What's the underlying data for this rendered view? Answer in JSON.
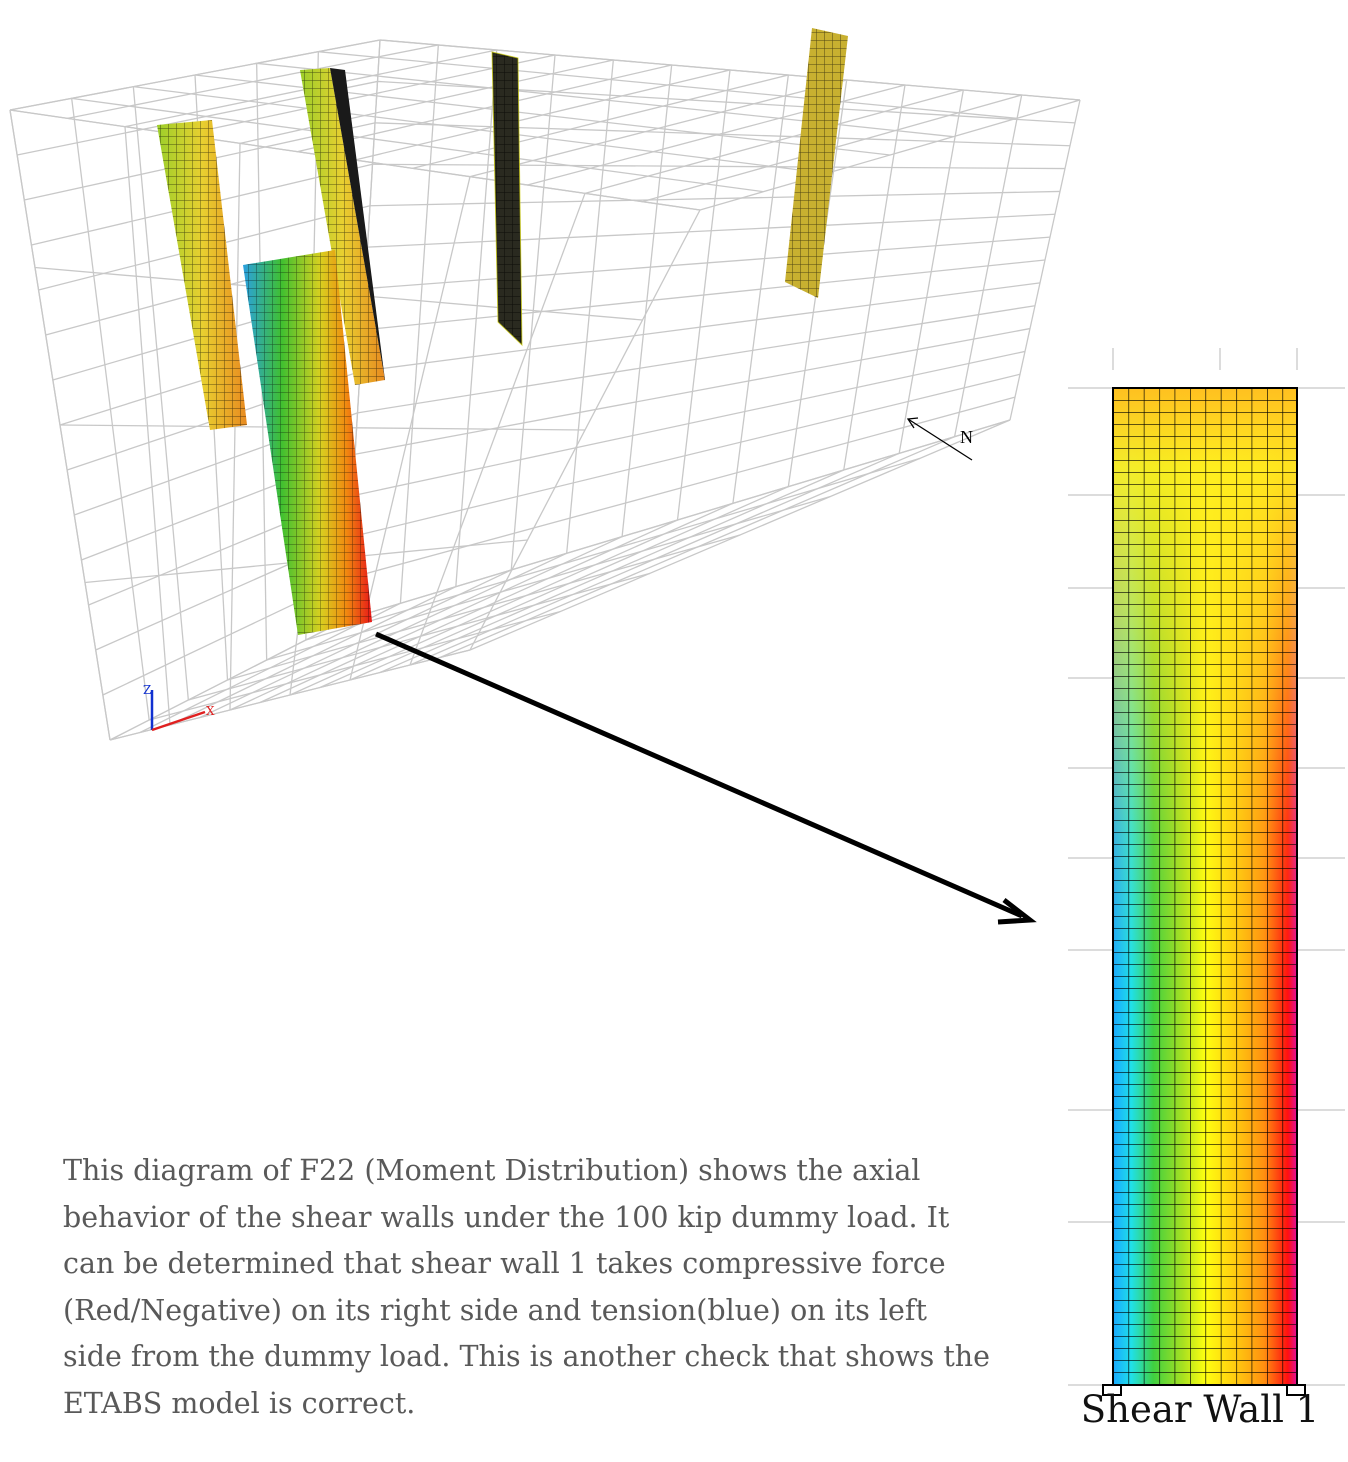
{
  "description": "This diagram of F22 (Moment Distribution) shows the axial behavior of the shear walls under the 100 kip dummy load. It can be determined that shear wall 1 takes compressive force (Red/Negative) on its right side and tension(blue) on its left side from the dummy load. This is another check that shows the ETABS model is correct.",
  "caption": "Shear Wall 1",
  "north_label": "N",
  "axis_labels": {
    "z": "Z",
    "x": "X"
  }
}
